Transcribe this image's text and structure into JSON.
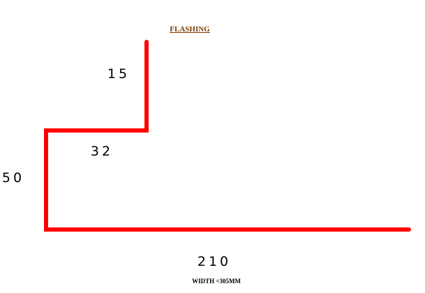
{
  "title": "FLASHING",
  "colors": {
    "profile": "#ff0000",
    "title": "#7a3b00",
    "text": "#000000"
  },
  "dimensions": {
    "top_flange": "15",
    "step": "32",
    "upright": "50",
    "base": "210"
  },
  "footer": "WIDTH =305MM"
}
